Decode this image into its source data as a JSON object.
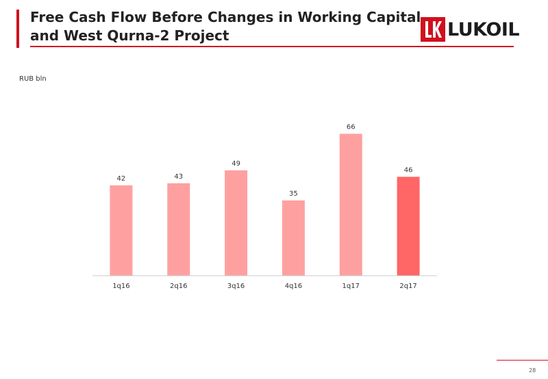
{
  "header": {
    "title": "Free Cash Flow Before Changes in Working Capital\nand West Qurna-2 Project",
    "logo_text": "LUKOIL",
    "accent_color": "#d0101e"
  },
  "footer": {
    "page_number": "28"
  },
  "chart_data": {
    "type": "bar",
    "unit_label": "RUB bln",
    "categories": [
      "1q16",
      "2q16",
      "3q16",
      "4q16",
      "1q17",
      "2q17"
    ],
    "values": [
      42,
      43,
      49,
      35,
      66,
      46
    ],
    "colors": [
      "#ffa0a0",
      "#ffa0a0",
      "#ffa0a0",
      "#ffa0a0",
      "#ffa0a0",
      "#ff6666"
    ],
    "ylim": [
      0,
      70
    ],
    "grid": false,
    "legend": false
  }
}
